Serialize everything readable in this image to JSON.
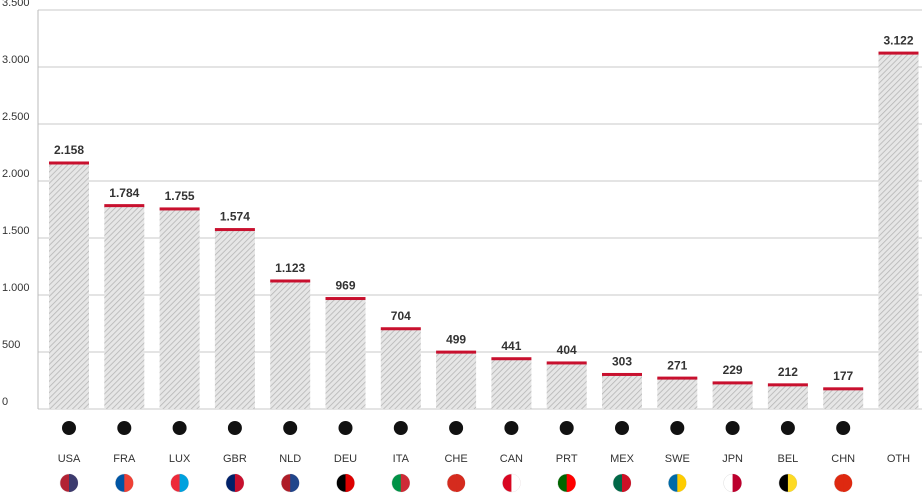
{
  "chart_data": {
    "type": "bar",
    "categories": [
      "USA",
      "FRA",
      "LUX",
      "GBR",
      "NLD",
      "DEU",
      "ITA",
      "CHE",
      "CAN",
      "PRT",
      "MEX",
      "SWE",
      "JPN",
      "BEL",
      "CHN",
      "OTH"
    ],
    "values": [
      2158,
      1784,
      1755,
      1574,
      1123,
      969,
      704,
      499,
      441,
      404,
      303,
      271,
      229,
      212,
      177,
      3122
    ],
    "value_labels": [
      "2.158",
      "1.784",
      "1.755",
      "1.574",
      "1.123",
      "969",
      "704",
      "499",
      "441",
      "404",
      "303",
      "271",
      "229",
      "212",
      "177",
      "3.122"
    ],
    "color": "#c8102e",
    "ylim": [
      0,
      3500
    ],
    "yticks": [
      0,
      500,
      {
        "value": 1000,
        "label": "1.000"
      },
      {
        "value": 1500,
        "label": "1.500"
      },
      {
        "value": 2000,
        "label": "2.000"
      },
      {
        "value": 2500,
        "label": "2.500"
      },
      {
        "value": 3000,
        "label": "3.000"
      },
      {
        "value": 3500,
        "label": "3.500"
      }
    ],
    "grid": true
  }
}
